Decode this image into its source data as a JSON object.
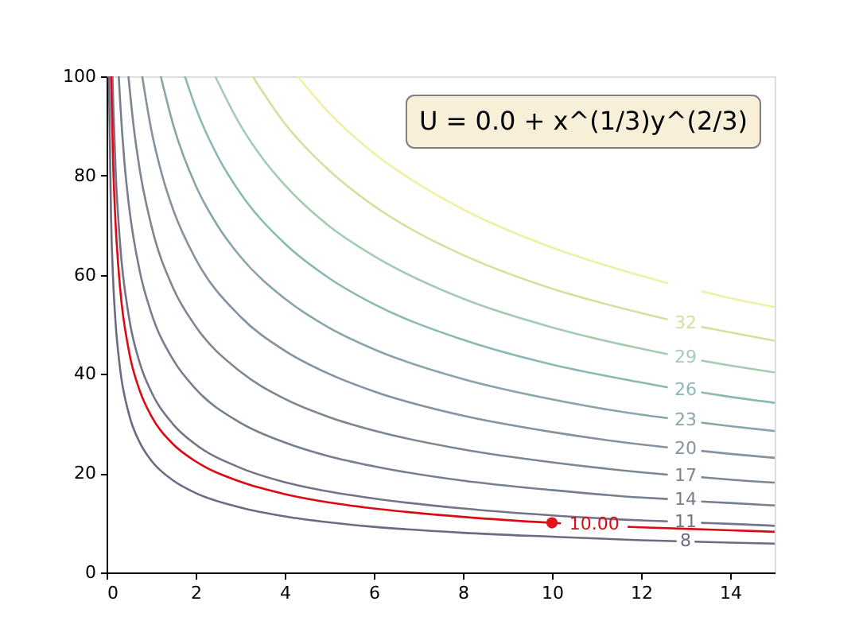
{
  "chart_data": {
    "type": "line",
    "annotations": [
      "U = 0.0 + x^(1/3)y^(2/3)"
    ],
    "xlim": [
      0,
      15
    ],
    "ylim": [
      0,
      100
    ],
    "xticks": [
      0,
      2,
      4,
      6,
      8,
      10,
      12,
      14
    ],
    "yticks": [
      0,
      20,
      40,
      60,
      80,
      100
    ],
    "grid": false,
    "legend": false,
    "series": [
      {
        "name": "8",
        "color": "#6f6a82",
        "x": [
          0.0512,
          0.1,
          0.15,
          0.2,
          0.3,
          0.5,
          0.75,
          1,
          1.5,
          2,
          3,
          4,
          5,
          6,
          8,
          10,
          12,
          12.8,
          13,
          13.2,
          14,
          15
        ],
        "values": [
          100,
          71.6,
          58.4,
          50.6,
          41.3,
          32.0,
          26.1,
          22.6,
          18.5,
          16.0,
          13.1,
          11.3,
          10.1,
          9.2,
          8.0,
          7.2,
          6.5,
          6.3,
          null,
          6.2,
          6.0,
          5.8
        ]
      },
      {
        "name": "11",
        "color": "#737489",
        "x": [
          0.133,
          0.15,
          0.2,
          0.3,
          0.5,
          0.75,
          1,
          1.5,
          2,
          3,
          4,
          5,
          6,
          8,
          10,
          12,
          12.6,
          13,
          13.35,
          14,
          15
        ],
        "values": [
          100,
          94.2,
          81.6,
          66.6,
          51.6,
          42.1,
          36.5,
          29.8,
          25.8,
          21.1,
          18.2,
          16.3,
          14.9,
          12.9,
          11.5,
          10.5,
          10.3,
          null,
          10.0,
          9.8,
          9.4
        ]
      },
      {
        "name": "14",
        "color": "#767f8e",
        "x": [
          0.274,
          0.3,
          0.4,
          0.5,
          0.75,
          1,
          1.5,
          2,
          3,
          4,
          5,
          6,
          8,
          10,
          12,
          12.6,
          13,
          13.35,
          14,
          15
        ],
        "values": [
          100,
          95.6,
          82.8,
          74.1,
          60.5,
          52.4,
          42.8,
          37.0,
          30.2,
          26.2,
          23.4,
          21.4,
          18.5,
          16.6,
          15.1,
          14.8,
          null,
          14.3,
          14.0,
          13.5
        ]
      },
      {
        "name": "17",
        "color": "#7b8793",
        "x": [
          0.491,
          0.6,
          0.75,
          1,
          1.5,
          2,
          3,
          4,
          5,
          6,
          8,
          10,
          12,
          12.6,
          13,
          13.35,
          14,
          15
        ],
        "values": [
          100,
          90.5,
          80.9,
          70.1,
          57.2,
          49.6,
          40.5,
          35.0,
          31.3,
          28.6,
          24.8,
          22.2,
          20.2,
          19.7,
          null,
          19.2,
          18.7,
          18.1
        ]
      },
      {
        "name": "20",
        "color": "#8593a0",
        "x": [
          0.8,
          1,
          1.25,
          1.5,
          2,
          3,
          4,
          5,
          6,
          8,
          10,
          12,
          12.6,
          13,
          13.35,
          14,
          15
        ],
        "values": [
          100,
          89.4,
          80.0,
          73.0,
          63.2,
          51.6,
          44.7,
          40.0,
          36.5,
          31.6,
          28.3,
          25.8,
          25.2,
          null,
          24.5,
          23.9,
          23.1
        ]
      },
      {
        "name": "23",
        "color": "#88a5ab",
        "x": [
          1.217,
          1.5,
          2,
          2.5,
          3,
          4,
          5,
          6,
          8,
          10,
          12,
          12.6,
          13,
          13.35,
          14,
          15
        ],
        "values": [
          100,
          90.1,
          78.0,
          69.8,
          63.7,
          55.2,
          49.3,
          45.0,
          39.0,
          34.9,
          31.8,
          31.1,
          null,
          30.2,
          29.5,
          28.5
        ]
      },
      {
        "name": "26",
        "color": "#8ab9b4",
        "x": [
          1.758,
          2,
          2.5,
          3,
          4,
          5,
          6,
          8,
          10,
          12,
          12.6,
          13,
          13.35,
          14,
          15
        ],
        "values": [
          100,
          93.7,
          83.8,
          76.5,
          66.3,
          59.3,
          54.1,
          46.9,
          41.9,
          38.3,
          37.3,
          null,
          36.3,
          35.4,
          34.2
        ]
      },
      {
        "name": "29",
        "color": "#a3ccb0",
        "x": [
          2.439,
          3,
          3.5,
          4,
          5,
          6,
          8,
          10,
          12,
          12.6,
          13,
          13.35,
          14,
          15
        ],
        "values": [
          100,
          90.2,
          83.5,
          78.1,
          69.8,
          63.8,
          55.2,
          49.4,
          45.1,
          44.0,
          null,
          42.7,
          41.7,
          40.3
        ]
      },
      {
        "name": "32",
        "color": "#cfe39e",
        "x": [
          3.277,
          4,
          5,
          6,
          7,
          8,
          10,
          12,
          12.6,
          13,
          13.35,
          14,
          15
        ],
        "values": [
          100,
          90.5,
          81.0,
          73.9,
          68.4,
          64.0,
          57.2,
          52.3,
          51.0,
          null,
          49.5,
          48.4,
          46.7
        ]
      },
      {
        "color": "#eef1a4",
        "x": [
          4.288,
          5,
          6,
          7,
          8,
          10,
          12,
          12.6,
          13,
          13.35,
          14,
          15
        ],
        "values": [
          100,
          92.6,
          84.5,
          78.3,
          73.2,
          65.5,
          59.8,
          58.3,
          null,
          56.7,
          55.3,
          53.5
        ]
      },
      {
        "name": "10.00",
        "color": "#dd0a14",
        "x": [
          0.1,
          0.15,
          0.2,
          0.3,
          0.5,
          0.75,
          1,
          1.5,
          2,
          3,
          4,
          5,
          6,
          8,
          10,
          10.2,
          10.95,
          11.7,
          12,
          13,
          14,
          15
        ],
        "values": [
          100,
          81.6,
          70.7,
          57.7,
          44.7,
          36.5,
          31.6,
          25.8,
          22.4,
          18.3,
          15.8,
          14.1,
          12.9,
          11.2,
          10.0,
          9.9,
          null,
          9.2,
          9.1,
          8.8,
          8.5,
          8.2
        ]
      },
      {
        "type": "scatter",
        "marker": "circle",
        "color": "#e3141e",
        "x": [
          10
        ],
        "values": [
          10
        ]
      }
    ]
  }
}
